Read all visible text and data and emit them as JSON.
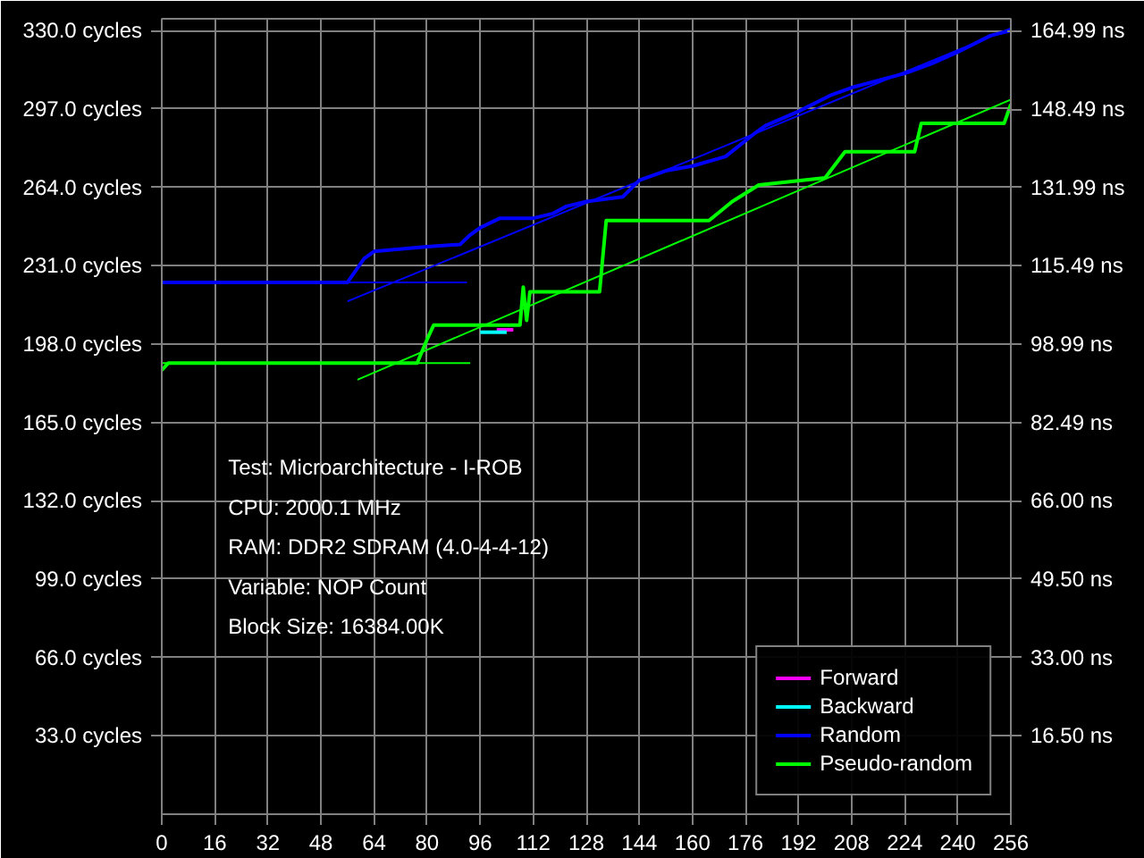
{
  "chart_data": {
    "type": "line",
    "xlim": [
      0,
      256
    ],
    "xticks": [
      0,
      16,
      32,
      48,
      64,
      80,
      96,
      112,
      128,
      144,
      160,
      176,
      192,
      208,
      224,
      240,
      256
    ],
    "ylim": [
      0,
      335
    ],
    "yticks": [
      {
        "value": 33,
        "label": "33.0 cycles"
      },
      {
        "value": 66,
        "label": "66.0 cycles"
      },
      {
        "value": 99,
        "label": "99.0 cycles"
      },
      {
        "value": 132,
        "label": "132.0 cycles"
      },
      {
        "value": 165,
        "label": "165.0 cycles"
      },
      {
        "value": 198,
        "label": "198.0 cycles"
      },
      {
        "value": 231,
        "label": "231.0 cycles"
      },
      {
        "value": 264,
        "label": "264.0 cycles"
      },
      {
        "value": 297,
        "label": "297.0 cycles"
      },
      {
        "value": 330,
        "label": "330.0 cycles"
      }
    ],
    "y2lim": [
      0,
      167.5
    ],
    "y2ticks": [
      {
        "value": 16.5,
        "label": "16.50 ns"
      },
      {
        "value": 33,
        "label": "33.00 ns"
      },
      {
        "value": 49.5,
        "label": "49.50 ns"
      },
      {
        "value": 66,
        "label": "66.00 ns"
      },
      {
        "value": 82.49,
        "label": "82.49 ns"
      },
      {
        "value": 98.99,
        "label": "98.99 ns"
      },
      {
        "value": 115.49,
        "label": "115.49 ns"
      },
      {
        "value": 131.99,
        "label": "131.99 ns"
      },
      {
        "value": 148.49,
        "label": "148.49 ns"
      },
      {
        "value": 164.99,
        "label": "164.99 ns"
      }
    ],
    "grid": true,
    "legend": "bottom right",
    "marker": "none",
    "line_style": "solid",
    "annotations": [
      "Test: Microarchitecture - I-ROB",
      "CPU: 2000.1 MHz",
      "RAM: DDR2 SDRAM (4.0-4-4-12)",
      "Variable: NOP Count",
      "Block Size: 16384.00K"
    ],
    "series": [
      {
        "name": "Forward",
        "color": "#ff00ff",
        "x": [
          101,
          106
        ],
        "values": [
          204,
          204
        ]
      },
      {
        "name": "Backward",
        "color": "#00ffff",
        "x": [
          96,
          104
        ],
        "values": [
          203,
          203
        ]
      },
      {
        "name": "Random",
        "color": "#0000ff",
        "x": [
          0,
          56,
          61,
          64,
          80,
          90,
          93,
          96,
          102,
          112,
          118,
          122,
          128,
          139,
          144,
          152,
          160,
          170,
          179,
          182,
          192,
          202,
          208,
          224,
          232,
          240,
          250,
          256
        ],
        "values": [
          224,
          224,
          234,
          237,
          239,
          240,
          244,
          247,
          251,
          251,
          253,
          256,
          258,
          260,
          267,
          271,
          273,
          277,
          287,
          290,
          296,
          303,
          306,
          312,
          316,
          321,
          328,
          330
        ]
      },
      {
        "name": "Pseudo-random",
        "color": "#00ff00",
        "x": [
          0,
          2,
          77,
          80,
          82,
          108,
          109,
          110,
          111,
          132,
          134,
          165,
          172,
          180,
          200,
          206,
          227,
          229,
          254,
          256
        ],
        "values": [
          187,
          190,
          190,
          200,
          206,
          206,
          222,
          208,
          220,
          220,
          250,
          250,
          258,
          265,
          268,
          279,
          279,
          291,
          291,
          299
        ]
      },
      {
        "type": "line",
        "color": "#0000ff",
        "x": [
          0,
          92
        ],
        "values": [
          224,
          224
        ]
      },
      {
        "type": "line",
        "color": "#0000ff",
        "x": [
          56,
          256
        ],
        "values": [
          216,
          331
        ]
      },
      {
        "type": "line",
        "color": "#00ff00",
        "x": [
          0,
          93
        ],
        "values": [
          190,
          190
        ]
      },
      {
        "type": "line",
        "color": "#00ff00",
        "x": [
          59,
          256
        ],
        "values": [
          183,
          301
        ]
      }
    ]
  }
}
